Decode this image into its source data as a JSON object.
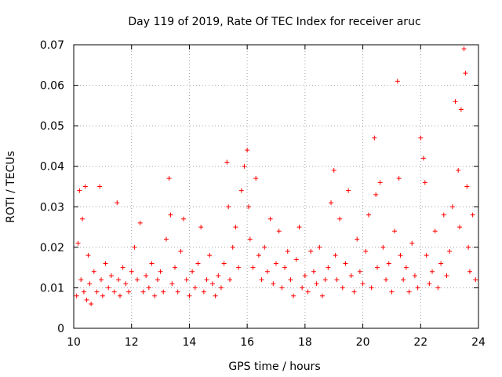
{
  "chart_data": {
    "type": "scatter",
    "title": "Day 119 of 2019, Rate Of TEC Index for receiver aruc",
    "xlabel": "GPS time / hours",
    "ylabel": "ROTI / TECUs",
    "xlim": [
      10,
      24
    ],
    "ylim": [
      0,
      0.07
    ],
    "xticks": [
      "10",
      "12",
      "14",
      "16",
      "18",
      "20",
      "22",
      "24"
    ],
    "yticks": [
      "0",
      "0.01",
      "0.02",
      "0.03",
      "0.04",
      "0.05",
      "0.06",
      "0.07"
    ],
    "grid": true,
    "marker": "plus",
    "color": "#ff0000",
    "series": [
      {
        "name": "ROTI",
        "x": [
          10.1,
          10.15,
          10.2,
          10.25,
          10.3,
          10.35,
          10.4,
          10.45,
          10.5,
          10.55,
          10.6,
          10.7,
          10.8,
          10.9,
          10.95,
          11.0,
          11.1,
          11.2,
          11.3,
          11.4,
          11.5,
          11.55,
          11.6,
          11.7,
          11.8,
          11.9,
          12.0,
          12.1,
          12.2,
          12.3,
          12.4,
          12.5,
          12.6,
          12.7,
          12.8,
          12.9,
          13.0,
          13.1,
          13.2,
          13.3,
          13.35,
          13.4,
          13.5,
          13.6,
          13.7,
          13.8,
          13.9,
          14.0,
          14.1,
          14.2,
          14.3,
          14.4,
          14.5,
          14.6,
          14.7,
          14.8,
          14.9,
          15.0,
          15.1,
          15.2,
          15.3,
          15.35,
          15.4,
          15.5,
          15.6,
          15.7,
          15.8,
          15.9,
          16.0,
          16.05,
          16.1,
          16.2,
          16.3,
          16.4,
          16.5,
          16.6,
          16.7,
          16.8,
          16.9,
          17.0,
          17.1,
          17.2,
          17.3,
          17.4,
          17.5,
          17.6,
          17.7,
          17.8,
          17.9,
          18.0,
          18.1,
          18.2,
          18.3,
          18.4,
          18.5,
          18.6,
          18.7,
          18.8,
          18.9,
          19.0,
          19.05,
          19.1,
          19.2,
          19.3,
          19.4,
          19.5,
          19.6,
          19.7,
          19.8,
          19.9,
          20.0,
          20.1,
          20.2,
          20.3,
          20.4,
          20.45,
          20.5,
          20.6,
          20.7,
          20.8,
          20.9,
          21.0,
          21.1,
          21.2,
          21.25,
          21.3,
          21.4,
          21.5,
          21.6,
          21.7,
          21.8,
          21.9,
          22.0,
          22.1,
          22.15,
          22.2,
          22.3,
          22.4,
          22.5,
          22.6,
          22.7,
          22.8,
          22.9,
          23.0,
          23.1,
          23.2,
          23.3,
          23.35,
          23.4,
          23.5,
          23.55,
          23.6,
          23.65,
          23.7,
          23.8,
          23.9
        ],
        "y": [
          0.008,
          0.021,
          0.034,
          0.012,
          0.027,
          0.009,
          0.035,
          0.007,
          0.018,
          0.011,
          0.006,
          0.014,
          0.009,
          0.035,
          0.012,
          0.008,
          0.016,
          0.01,
          0.013,
          0.009,
          0.031,
          0.012,
          0.008,
          0.015,
          0.011,
          0.009,
          0.014,
          0.02,
          0.012,
          0.026,
          0.009,
          0.013,
          0.01,
          0.016,
          0.008,
          0.012,
          0.014,
          0.009,
          0.022,
          0.037,
          0.028,
          0.011,
          0.015,
          0.009,
          0.019,
          0.027,
          0.012,
          0.008,
          0.014,
          0.01,
          0.016,
          0.025,
          0.009,
          0.012,
          0.018,
          0.011,
          0.008,
          0.013,
          0.01,
          0.016,
          0.041,
          0.03,
          0.012,
          0.02,
          0.025,
          0.015,
          0.034,
          0.04,
          0.044,
          0.03,
          0.022,
          0.015,
          0.037,
          0.018,
          0.012,
          0.02,
          0.014,
          0.027,
          0.011,
          0.016,
          0.024,
          0.01,
          0.015,
          0.019,
          0.012,
          0.008,
          0.017,
          0.025,
          0.01,
          0.013,
          0.009,
          0.019,
          0.014,
          0.011,
          0.02,
          0.008,
          0.012,
          0.015,
          0.031,
          0.039,
          0.018,
          0.012,
          0.027,
          0.01,
          0.016,
          0.034,
          0.013,
          0.009,
          0.022,
          0.014,
          0.011,
          0.019,
          0.028,
          0.01,
          0.047,
          0.033,
          0.015,
          0.036,
          0.02,
          0.012,
          0.016,
          0.009,
          0.024,
          0.061,
          0.037,
          0.018,
          0.012,
          0.015,
          0.009,
          0.021,
          0.013,
          0.01,
          0.047,
          0.042,
          0.036,
          0.018,
          0.011,
          0.014,
          0.024,
          0.01,
          0.016,
          0.028,
          0.013,
          0.019,
          0.03,
          0.056,
          0.039,
          0.025,
          0.054,
          0.069,
          0.063,
          0.035,
          0.02,
          0.014,
          0.028,
          0.012
        ]
      }
    ]
  }
}
